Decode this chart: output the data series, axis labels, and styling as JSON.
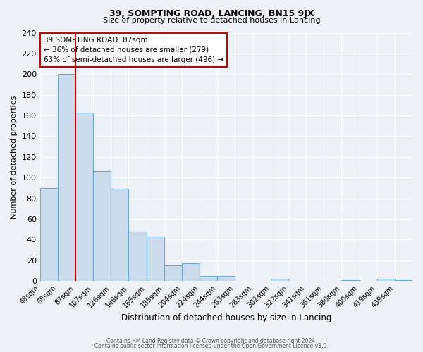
{
  "title": "39, SOMPTING ROAD, LANCING, BN15 9JX",
  "subtitle": "Size of property relative to detached houses in Lancing",
  "xlabel": "Distribution of detached houses by size in Lancing",
  "ylabel": "Number of detached properties",
  "footer_lines": [
    "Contains HM Land Registry data © Crown copyright and database right 2024.",
    "Contains public sector information licensed under the Open Government Licence v3.0."
  ],
  "bin_labels": [
    "48sqm",
    "68sqm",
    "87sqm",
    "107sqm",
    "126sqm",
    "146sqm",
    "165sqm",
    "185sqm",
    "204sqm",
    "224sqm",
    "244sqm",
    "263sqm",
    "283sqm",
    "302sqm",
    "322sqm",
    "341sqm",
    "361sqm",
    "380sqm",
    "400sqm",
    "419sqm",
    "439sqm"
  ],
  "bar_values": [
    90,
    200,
    163,
    106,
    89,
    48,
    43,
    15,
    17,
    5,
    5,
    0,
    0,
    2,
    0,
    0,
    0,
    1,
    0,
    2,
    1
  ],
  "bar_color": "#ccdcec",
  "bar_edge_color": "#6aaad4",
  "vline_color": "#cc0000",
  "vline_index": 2,
  "annotation_title": "39 SOMPTING ROAD: 87sqm",
  "annotation_line1": "← 36% of detached houses are smaller (279)",
  "annotation_line2": "63% of semi-detached houses are larger (496) →",
  "annotation_box_color": "white",
  "annotation_box_edge_color": "#cc0000",
  "ylim": [
    0,
    240
  ],
  "yticks": [
    0,
    20,
    40,
    60,
    80,
    100,
    120,
    140,
    160,
    180,
    200,
    220,
    240
  ],
  "bg_color": "#eef2f7",
  "grid_color": "#ffffff",
  "title_fontsize": 9,
  "subtitle_fontsize": 8
}
